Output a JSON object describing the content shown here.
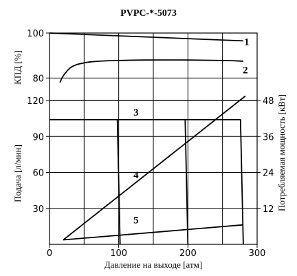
{
  "chart_data": {
    "type": "line",
    "title": "PVPC-*-5073",
    "xlabel": "Давление на выходе [атм]",
    "ylabel_top": "КПД [%]",
    "ylabel_bottom": "Подача [л/мин]",
    "ylabel_right": "Потребляемая мощность [кВт]",
    "x_ticks": [
      "0",
      "100",
      "200",
      "300"
    ],
    "xlim": [
      0,
      300
    ],
    "efficiency_ticks": [
      "100",
      "80"
    ],
    "efficiency_lim": [
      70,
      100
    ],
    "flow_ticks": [
      "120",
      "90",
      "60",
      "30"
    ],
    "flow_lim": [
      0,
      120
    ],
    "power_ticks": [
      "48",
      "36",
      "24",
      "12"
    ],
    "power_lim": [
      0,
      48
    ],
    "grid": true,
    "series": [
      {
        "name": "1",
        "axis": "efficiency",
        "x": [
          0,
          280
        ],
        "y": [
          100,
          96.5
        ]
      },
      {
        "name": "2",
        "axis": "efficiency",
        "x": [
          15,
          20,
          30,
          40,
          50,
          60,
          80,
          100,
          140,
          200,
          250,
          280
        ],
        "y": [
          78,
          81,
          84.5,
          86,
          86.7,
          87.2,
          87.6,
          87.8,
          88,
          88,
          87.8,
          87.5
        ]
      },
      {
        "name": "3",
        "axis": "flow",
        "segments": [
          {
            "x": [
              0,
              98,
              102
            ],
            "y": [
              104,
              104,
              0
            ]
          },
          {
            "x": [
              98,
              196,
              200
            ],
            "y": [
              104,
              104,
              0
            ]
          },
          {
            "x": [
              196,
              276,
              280
            ],
            "y": [
              104,
              104,
              0
            ]
          }
        ]
      },
      {
        "name": "4",
        "axis": "power",
        "x": [
          20,
          283
        ],
        "y": [
          1.5,
          49.5
        ]
      },
      {
        "name": "5",
        "axis": "power",
        "x": [
          20,
          280
        ],
        "y": [
          1.5,
          6.5
        ]
      }
    ]
  }
}
